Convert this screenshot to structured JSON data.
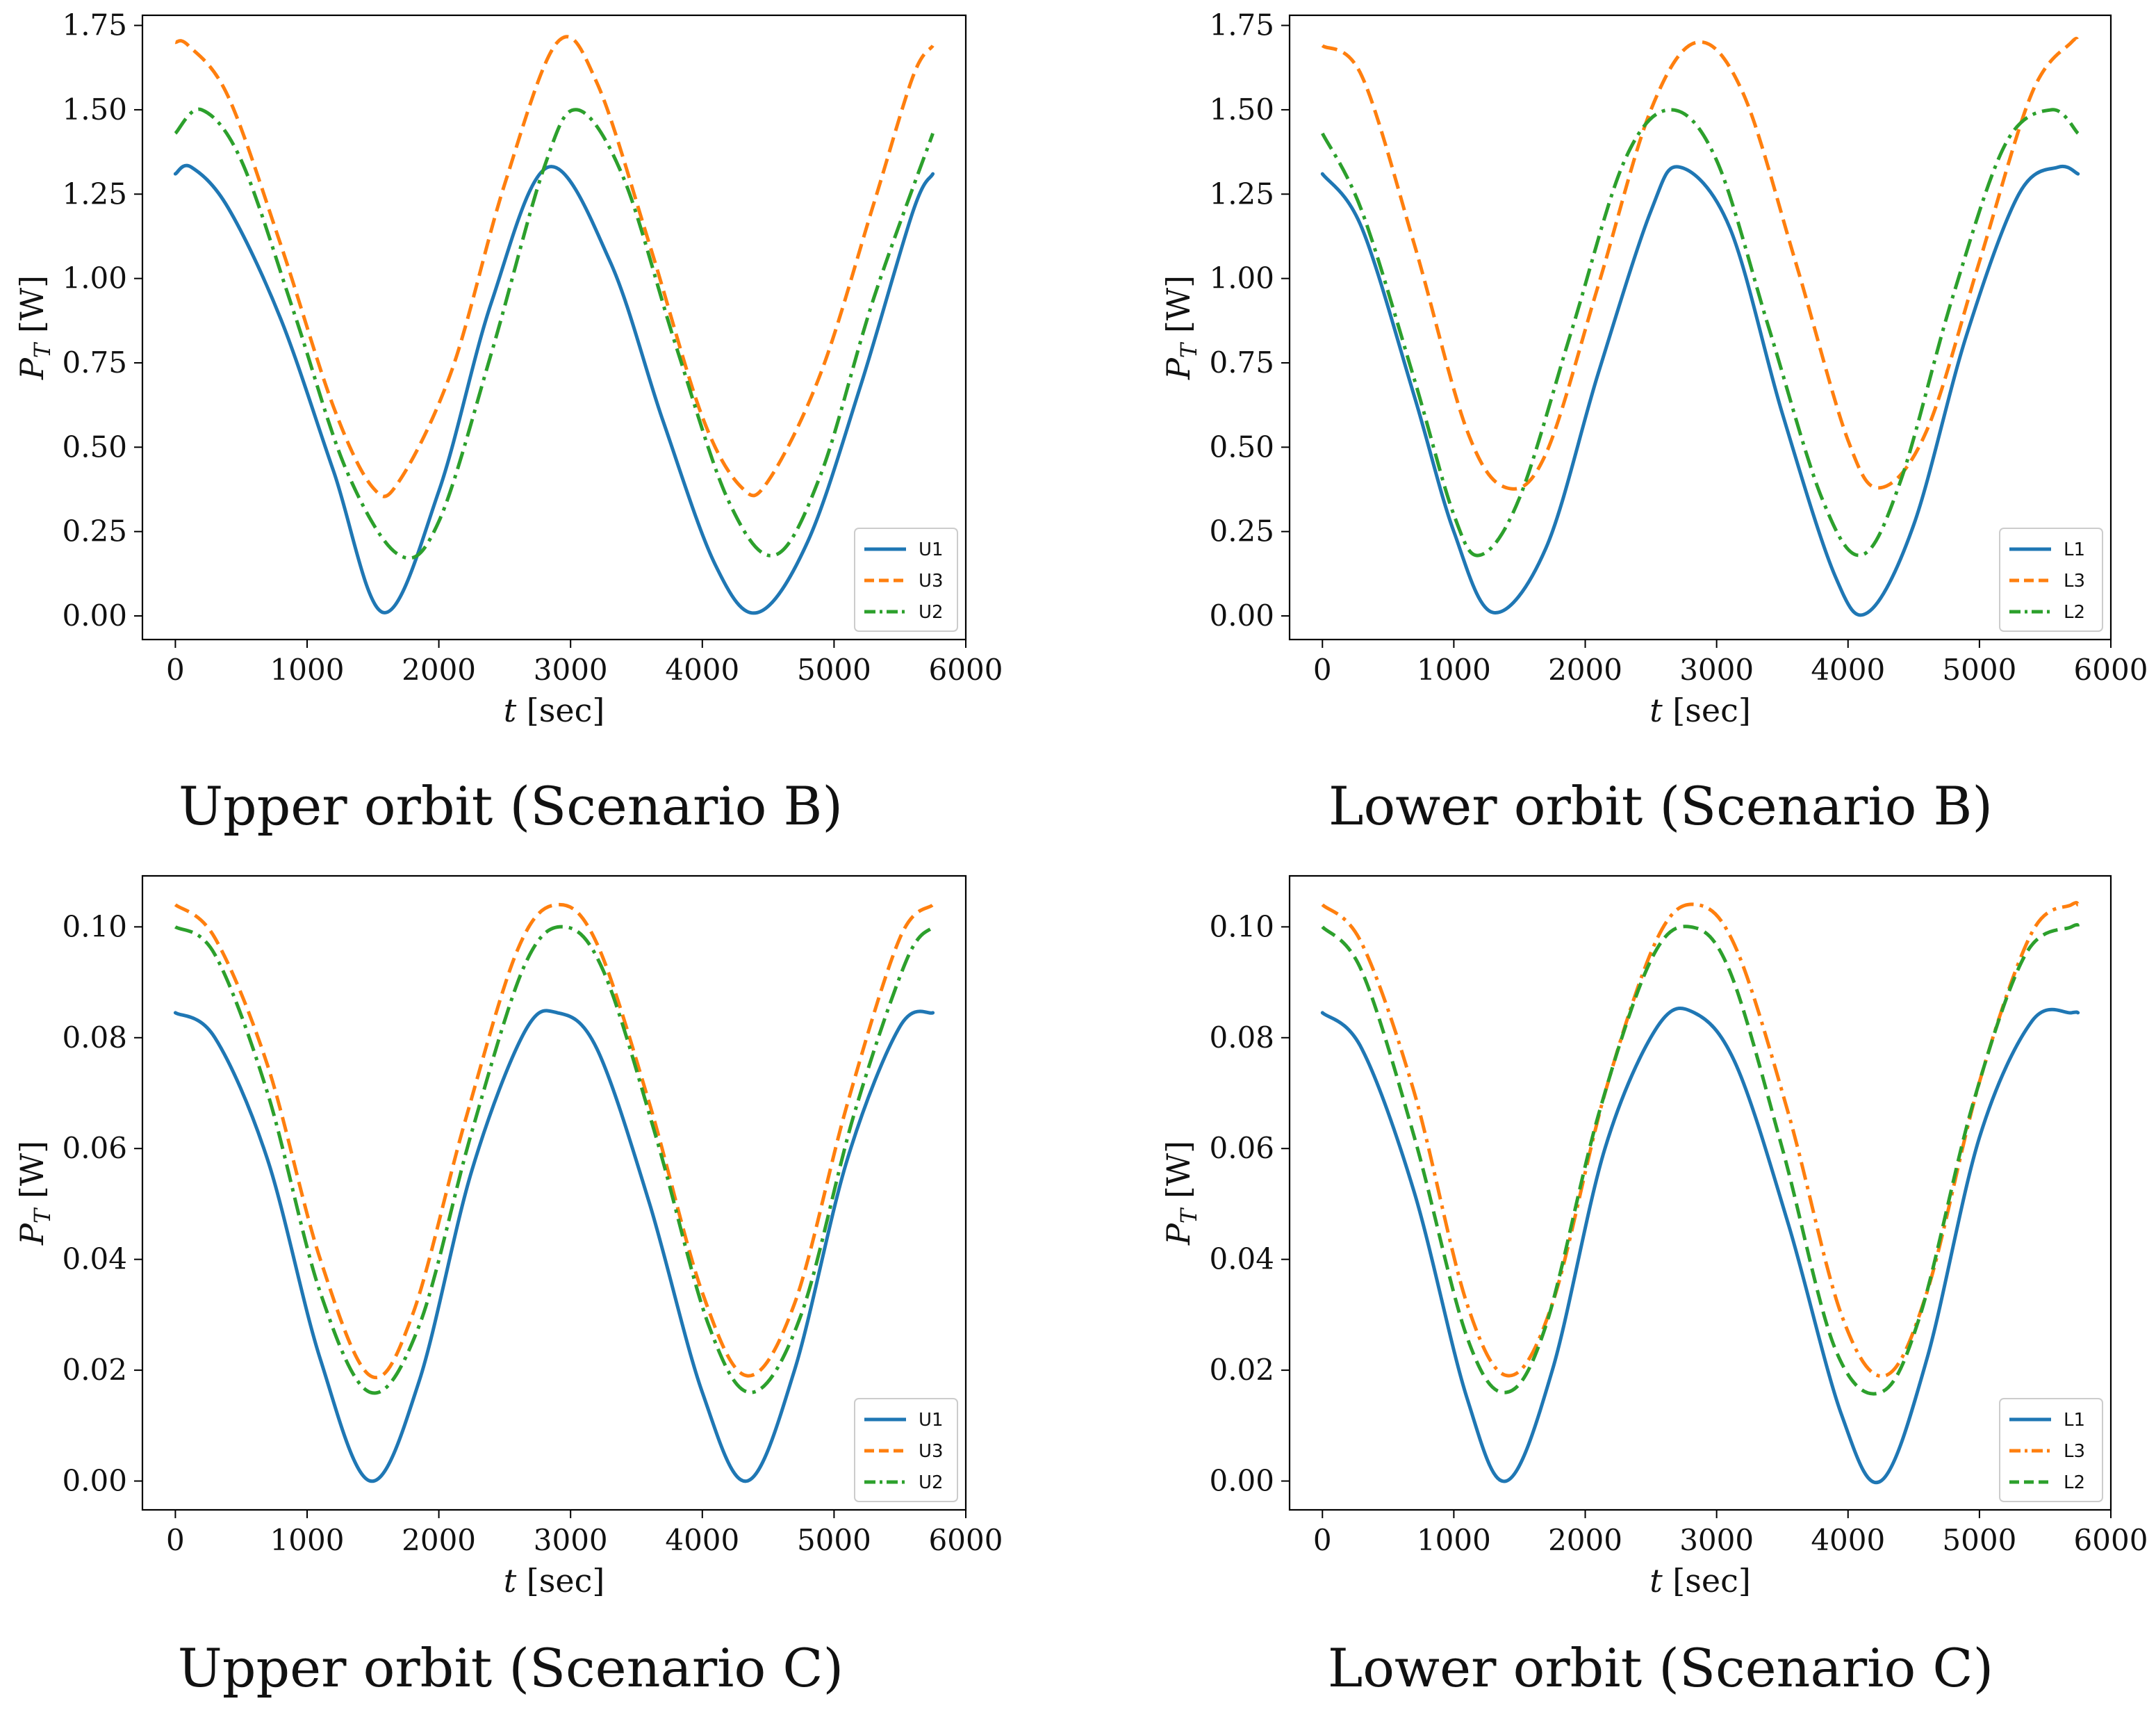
{
  "figure": {
    "captions": [
      "Upper orbit (Scenario B)",
      "Lower orbit (Scenario B)",
      "Upper orbit (Scenario C)",
      "Lower orbit (Scenario C)"
    ]
  },
  "colors": {
    "blue": "#1f77b4",
    "orange": "#ff7f0e",
    "green": "#2ca02c"
  },
  "chart_data": [
    {
      "type": "line",
      "caption": "Upper orbit (Scenario B)",
      "xlabel": "t [sec]",
      "ylabel": "P_T [W]",
      "xlim": [
        -250,
        6000
      ],
      "ylim": [
        -0.07,
        1.78
      ],
      "xticks": [
        0,
        1000,
        2000,
        3000,
        4000,
        5000,
        6000
      ],
      "yticks": [
        0.0,
        0.25,
        0.5,
        0.75,
        1.0,
        1.25,
        1.5,
        1.75
      ],
      "ytick_decimals": 2,
      "legend_position": "lower-right",
      "series": [
        {
          "name": "U1",
          "style": "solid",
          "color": "#1f77b4",
          "x": [
            0,
            120,
            400,
            800,
            1200,
            1580,
            2000,
            2400,
            2830,
            3300,
            3700,
            4100,
            4420,
            4800,
            5200,
            5600,
            5750
          ],
          "y": [
            1.31,
            1.33,
            1.21,
            0.88,
            0.43,
            0.01,
            0.37,
            0.93,
            1.33,
            1.05,
            0.58,
            0.15,
            0.01,
            0.22,
            0.68,
            1.2,
            1.31
          ]
        },
        {
          "name": "U3",
          "style": "dashed",
          "color": "#ff7f0e",
          "x": [
            0,
            100,
            400,
            800,
            1200,
            1500,
            1700,
            2100,
            2500,
            2900,
            3200,
            3600,
            4000,
            4300,
            4500,
            4900,
            5300,
            5600,
            5750
          ],
          "y": [
            1.7,
            1.69,
            1.54,
            1.1,
            0.62,
            0.38,
            0.4,
            0.73,
            1.28,
            1.7,
            1.58,
            1.1,
            0.59,
            0.38,
            0.4,
            0.72,
            1.22,
            1.6,
            1.69
          ]
        },
        {
          "name": "U2",
          "style": "dashdot",
          "color": "#2ca02c",
          "x": [
            0,
            200,
            500,
            900,
            1300,
            1700,
            2000,
            2400,
            2800,
            3050,
            3400,
            3800,
            4200,
            4550,
            4900,
            5300,
            5750
          ],
          "y": [
            1.43,
            1.5,
            1.35,
            0.9,
            0.43,
            0.18,
            0.28,
            0.78,
            1.33,
            1.5,
            1.3,
            0.8,
            0.34,
            0.18,
            0.42,
            0.94,
            1.43
          ]
        }
      ]
    },
    {
      "type": "line",
      "caption": "Lower orbit (Scenario B)",
      "xlabel": "t [sec]",
      "ylabel": "P_T [W]",
      "xlim": [
        -250,
        6000
      ],
      "ylim": [
        -0.07,
        1.78
      ],
      "xticks": [
        0,
        1000,
        2000,
        3000,
        4000,
        5000,
        6000
      ],
      "yticks": [
        0.0,
        0.25,
        0.5,
        0.75,
        1.0,
        1.25,
        1.5,
        1.75
      ],
      "ytick_decimals": 2,
      "legend_position": "lower-right",
      "series": [
        {
          "name": "L1",
          "style": "solid",
          "color": "#1f77b4",
          "x": [
            0,
            300,
            700,
            1000,
            1300,
            1700,
            2100,
            2500,
            2720,
            3100,
            3500,
            3900,
            4150,
            4500,
            4900,
            5300,
            5600,
            5750
          ],
          "y": [
            1.31,
            1.15,
            0.65,
            0.25,
            0.01,
            0.2,
            0.72,
            1.2,
            1.33,
            1.15,
            0.6,
            0.12,
            0.01,
            0.27,
            0.83,
            1.25,
            1.33,
            1.31
          ]
        },
        {
          "name": "L3",
          "style": "dashed",
          "color": "#ff7f0e",
          "x": [
            0,
            300,
            700,
            1100,
            1400,
            1700,
            2100,
            2500,
            2850,
            3200,
            3600,
            4000,
            4250,
            4600,
            5000,
            5400,
            5700,
            5750
          ],
          "y": [
            1.69,
            1.6,
            1.1,
            0.55,
            0.38,
            0.48,
            0.98,
            1.5,
            1.7,
            1.55,
            1.05,
            0.52,
            0.38,
            0.55,
            1.05,
            1.55,
            1.7,
            1.7
          ]
        },
        {
          "name": "L2",
          "style": "dashdot",
          "color": "#2ca02c",
          "x": [
            0,
            300,
            700,
            1000,
            1200,
            1500,
            1900,
            2300,
            2650,
            3000,
            3400,
            3800,
            4100,
            4400,
            4800,
            5200,
            5550,
            5750
          ],
          "y": [
            1.43,
            1.2,
            0.7,
            0.3,
            0.18,
            0.35,
            0.85,
            1.35,
            1.5,
            1.35,
            0.85,
            0.35,
            0.18,
            0.4,
            0.95,
            1.4,
            1.5,
            1.43
          ]
        }
      ]
    },
    {
      "type": "line",
      "caption": "Upper orbit (Scenario C)",
      "xlabel": "t [sec]",
      "ylabel": "P_T [W]",
      "xlim": [
        -250,
        6000
      ],
      "ylim": [
        -0.0052,
        0.1092
      ],
      "xticks": [
        0,
        1000,
        2000,
        3000,
        4000,
        5000,
        6000
      ],
      "yticks": [
        0.0,
        0.02,
        0.04,
        0.06,
        0.08,
        0.1
      ],
      "ytick_decimals": 2,
      "legend_position": "lower-right",
      "series": [
        {
          "name": "U1",
          "style": "solid",
          "color": "#1f77b4",
          "x": [
            0,
            300,
            700,
            1100,
            1480,
            1850,
            2250,
            2650,
            2900,
            3200,
            3600,
            4000,
            4340,
            4700,
            5100,
            5500,
            5750
          ],
          "y": [
            0.0845,
            0.08,
            0.058,
            0.022,
            0.0,
            0.018,
            0.056,
            0.081,
            0.0845,
            0.078,
            0.05,
            0.016,
            0.0,
            0.02,
            0.058,
            0.082,
            0.0845
          ]
        },
        {
          "name": "U3",
          "style": "dashed",
          "color": "#ff7f0e",
          "x": [
            0,
            300,
            700,
            1100,
            1480,
            1800,
            2200,
            2600,
            2900,
            3200,
            3600,
            4000,
            4340,
            4700,
            5100,
            5500,
            5750
          ],
          "y": [
            0.104,
            0.098,
            0.075,
            0.04,
            0.019,
            0.03,
            0.065,
            0.096,
            0.104,
            0.097,
            0.068,
            0.034,
            0.019,
            0.032,
            0.068,
            0.098,
            0.104
          ]
        },
        {
          "name": "U2",
          "style": "dashdot",
          "color": "#2ca02c",
          "x": [
            0,
            300,
            700,
            1100,
            1480,
            1850,
            2250,
            2650,
            2950,
            3250,
            3650,
            4050,
            4380,
            4750,
            5150,
            5550,
            5750
          ],
          "y": [
            0.1,
            0.095,
            0.07,
            0.034,
            0.016,
            0.028,
            0.063,
            0.093,
            0.1,
            0.092,
            0.062,
            0.028,
            0.016,
            0.03,
            0.066,
            0.094,
            0.1
          ]
        }
      ]
    },
    {
      "type": "line",
      "caption": "Lower orbit (Scenario C)",
      "xlabel": "t [sec]",
      "ylabel": "P_T [W]",
      "xlim": [
        -250,
        6000
      ],
      "ylim": [
        -0.0052,
        0.1092
      ],
      "xticks": [
        0,
        1000,
        2000,
        3000,
        4000,
        5000,
        6000
      ],
      "yticks": [
        0.0,
        0.02,
        0.04,
        0.06,
        0.08,
        0.1
      ],
      "ytick_decimals": 2,
      "legend_position": "lower-right",
      "series": [
        {
          "name": "L1",
          "style": "solid",
          "color": "#1f77b4",
          "x": [
            0,
            300,
            700,
            1100,
            1400,
            1750,
            2150,
            2550,
            2830,
            3150,
            3550,
            3950,
            4250,
            4600,
            5000,
            5400,
            5700,
            5750
          ],
          "y": [
            0.0845,
            0.078,
            0.052,
            0.015,
            0.0,
            0.02,
            0.06,
            0.082,
            0.0845,
            0.075,
            0.046,
            0.012,
            0.0,
            0.022,
            0.062,
            0.083,
            0.0845,
            0.0845
          ]
        },
        {
          "name": "L3",
          "style": "dashdot",
          "color": "#ff7f0e",
          "x": [
            0,
            300,
            700,
            1100,
            1420,
            1750,
            2150,
            2550,
            2850,
            3150,
            3550,
            3950,
            4280,
            4600,
            5000,
            5400,
            5700,
            5750
          ],
          "y": [
            0.104,
            0.097,
            0.07,
            0.032,
            0.019,
            0.032,
            0.07,
            0.098,
            0.104,
            0.096,
            0.066,
            0.03,
            0.019,
            0.034,
            0.072,
            0.099,
            0.104,
            0.104
          ]
        },
        {
          "name": "L2",
          "style": "dashed",
          "color": "#2ca02c",
          "x": [
            0,
            300,
            700,
            1100,
            1400,
            1700,
            2100,
            2500,
            2800,
            3100,
            3500,
            3900,
            4250,
            4550,
            4950,
            5350,
            5700,
            5750
          ],
          "y": [
            0.1,
            0.092,
            0.062,
            0.026,
            0.016,
            0.028,
            0.066,
            0.094,
            0.1,
            0.092,
            0.06,
            0.024,
            0.016,
            0.03,
            0.068,
            0.095,
            0.1,
            0.1
          ]
        }
      ]
    }
  ]
}
